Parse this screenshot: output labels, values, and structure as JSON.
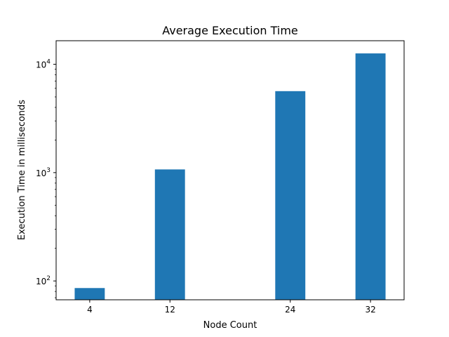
{
  "chart_data": {
    "type": "bar",
    "title": "Average Execution Time",
    "xlabel": "Node Count",
    "ylabel": "Execution Time in milliseconds",
    "x": [
      4,
      12,
      24,
      32
    ],
    "values": [
      86,
      1070,
      5650,
      12600
    ],
    "xticks": [
      "4",
      "12",
      "24",
      "32"
    ],
    "xlim": [
      0.65,
      35.35
    ],
    "bar_width": 3,
    "yscale": "log",
    "ylim": [
      67,
      16500
    ],
    "yticks": [
      {
        "value": 100,
        "base": "10",
        "exp": "2"
      },
      {
        "value": 1000,
        "base": "10",
        "exp": "3"
      },
      {
        "value": 10000,
        "base": "10",
        "exp": "4"
      }
    ],
    "minor_yticks": [
      70,
      80,
      90,
      200,
      300,
      400,
      500,
      600,
      700,
      800,
      900,
      2000,
      3000,
      4000,
      5000,
      6000,
      7000,
      8000,
      9000
    ],
    "grid": false,
    "legend": "none",
    "bar_color": "#1f77b4"
  }
}
